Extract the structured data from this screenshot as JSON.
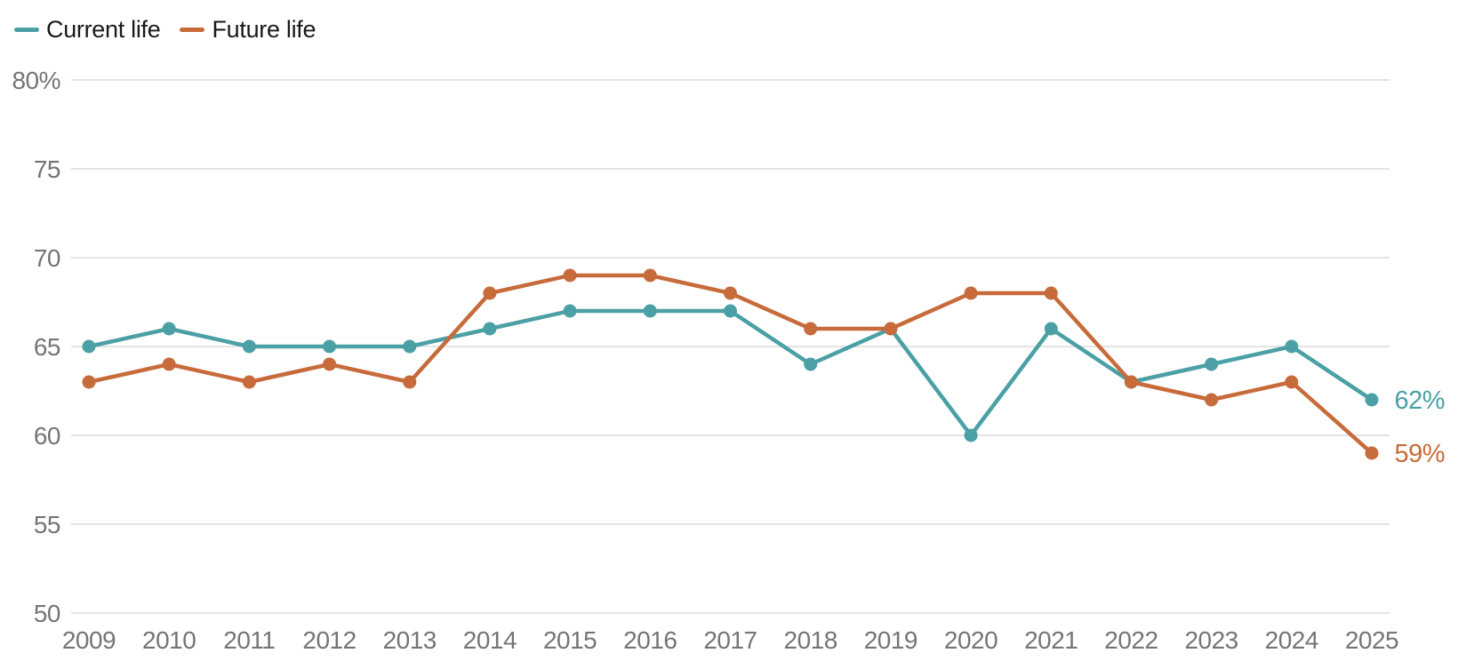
{
  "chart_data": {
    "type": "line",
    "title": "",
    "xlabel": "",
    "ylabel": "",
    "categories": [
      "2009",
      "2010",
      "2011",
      "2012",
      "2013",
      "2014",
      "2015",
      "2016",
      "2017",
      "2018",
      "2019",
      "2020",
      "2021",
      "2022",
      "2023",
      "2024",
      "2025"
    ],
    "series": [
      {
        "name": "Current life",
        "color": "#4BA0A5",
        "values": [
          65,
          66,
          65,
          65,
          65,
          66,
          67,
          67,
          67,
          64,
          66,
          60,
          66,
          63,
          64,
          65,
          62
        ],
        "end_label": "62%"
      },
      {
        "name": "Future life",
        "color": "#C76B3B",
        "values": [
          63,
          64,
          63,
          64,
          63,
          68,
          69,
          69,
          68,
          66,
          66,
          68,
          68,
          63,
          62,
          63,
          59
        ],
        "end_label": "59%"
      }
    ],
    "ylim": [
      50,
      80
    ],
    "yticks": [
      80,
      75,
      70,
      65,
      60,
      55,
      50
    ],
    "ytick_labels": [
      "80%",
      "75",
      "70",
      "65",
      "60",
      "55",
      "50"
    ],
    "grid": "horizontal",
    "legend_position": "top-left",
    "colors": {
      "axis_text": "#757575",
      "gridline": "#DCDCDC",
      "legend_text": "#1A1A1A",
      "background": "#FFFFFF"
    }
  }
}
